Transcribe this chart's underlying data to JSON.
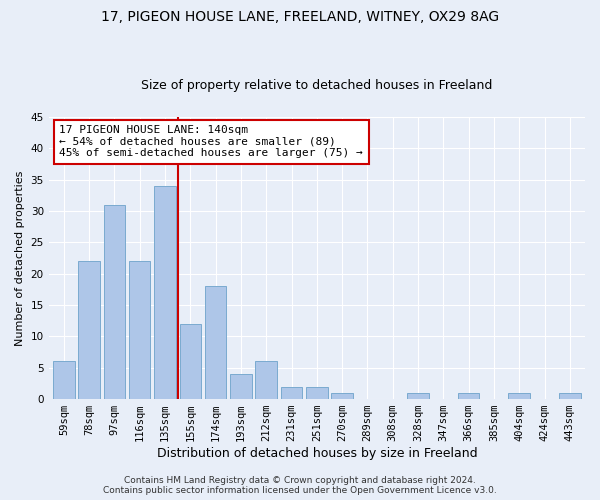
{
  "title1": "17, PIGEON HOUSE LANE, FREELAND, WITNEY, OX29 8AG",
  "title2": "Size of property relative to detached houses in Freeland",
  "xlabel": "Distribution of detached houses by size in Freeland",
  "ylabel": "Number of detached properties",
  "categories": [
    "59sqm",
    "78sqm",
    "97sqm",
    "116sqm",
    "135sqm",
    "155sqm",
    "174sqm",
    "193sqm",
    "212sqm",
    "231sqm",
    "251sqm",
    "270sqm",
    "289sqm",
    "308sqm",
    "328sqm",
    "347sqm",
    "366sqm",
    "385sqm",
    "404sqm",
    "424sqm",
    "443sqm"
  ],
  "values": [
    6,
    22,
    31,
    22,
    34,
    12,
    18,
    4,
    6,
    2,
    2,
    1,
    0,
    0,
    1,
    0,
    1,
    0,
    1,
    0,
    1
  ],
  "bar_color": "#aec6e8",
  "bar_edge_color": "#7aaad0",
  "vline_x": 4.5,
  "vline_color": "#cc0000",
  "annotation_text": "17 PIGEON HOUSE LANE: 140sqm\n← 54% of detached houses are smaller (89)\n45% of semi-detached houses are larger (75) →",
  "annotation_box_color": "#ffffff",
  "annotation_box_edge": "#cc0000",
  "ylim": [
    0,
    45
  ],
  "yticks": [
    0,
    5,
    10,
    15,
    20,
    25,
    30,
    35,
    40,
    45
  ],
  "footer1": "Contains HM Land Registry data © Crown copyright and database right 2024.",
  "footer2": "Contains public sector information licensed under the Open Government Licence v3.0.",
  "bg_color": "#e8eef8",
  "grid_color": "#ffffff",
  "title1_fontsize": 10,
  "title2_fontsize": 9,
  "xlabel_fontsize": 9,
  "ylabel_fontsize": 8,
  "tick_fontsize": 7.5,
  "annotation_fontsize": 8,
  "footer_fontsize": 6.5
}
